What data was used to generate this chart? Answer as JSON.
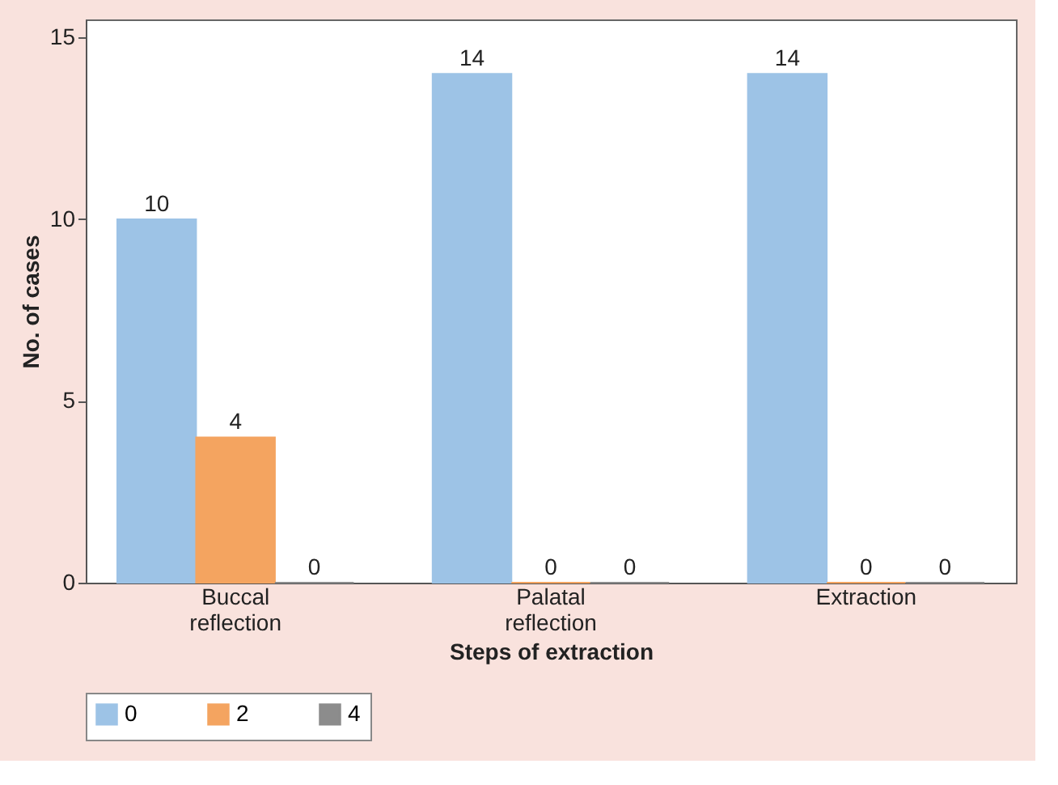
{
  "chart_data": {
    "type": "bar",
    "xlabel": "Steps of extraction",
    "ylabel": "No. of cases",
    "categories": [
      "Buccal reflection",
      "Palatal reflection",
      "Extraction"
    ],
    "series": [
      {
        "name": "0",
        "color": "#9dc3e6",
        "values": [
          10,
          14,
          14
        ]
      },
      {
        "name": "2",
        "color": "#f4a460",
        "values": [
          4,
          0,
          0
        ]
      },
      {
        "name": "4",
        "color": "#8c8c8c",
        "values": [
          0,
          0,
          0
        ]
      }
    ],
    "ylim": [
      0,
      15.5
    ],
    "yticks": [
      0,
      5,
      10,
      15
    ],
    "grid": false,
    "legend": "bottom",
    "data_labels": true
  }
}
